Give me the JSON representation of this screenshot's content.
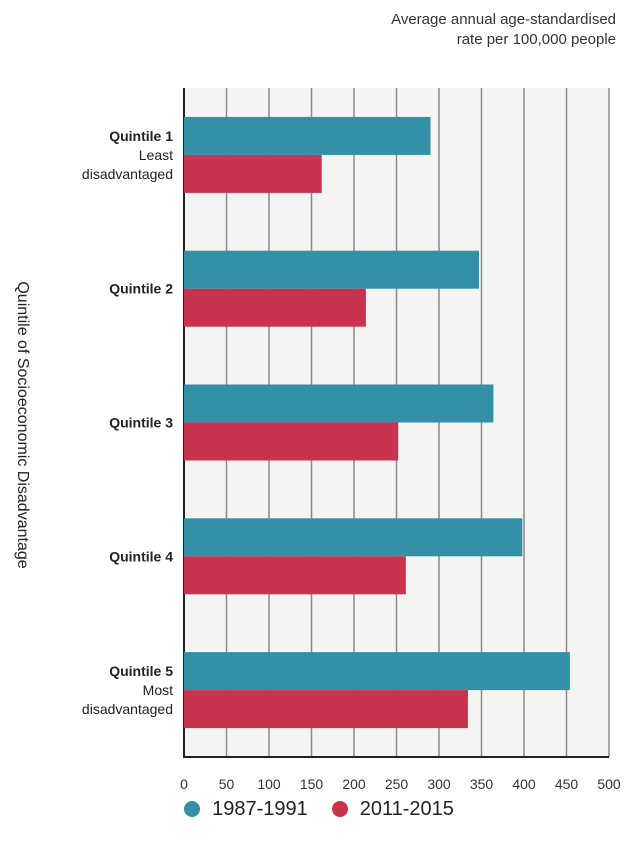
{
  "chart_data": {
    "type": "bar",
    "orientation": "horizontal",
    "title": "Average annual age-standardised\nrate per 100,000 people",
    "subtitle_lines": [
      "Average annual age-standardised",
      "rate per 100,000 people"
    ],
    "ylabel": "Quintile of Socioeconomic Disadvantage",
    "xlabel": "",
    "categories": [
      {
        "label": "Quintile 1",
        "sub1": "Least",
        "sub2": "disadvantaged"
      },
      {
        "label": "Quintile 2",
        "sub1": "",
        "sub2": ""
      },
      {
        "label": "Quintile 3",
        "sub1": "",
        "sub2": ""
      },
      {
        "label": "Quintile 4",
        "sub1": "",
        "sub2": ""
      },
      {
        "label": "Quintile 5",
        "sub1": "Most",
        "sub2": "disadvantaged"
      }
    ],
    "series": [
      {
        "name": "1987-1991",
        "color": "#3490a7",
        "values": [
          290,
          347,
          364,
          398,
          454
        ]
      },
      {
        "name": "2011-2015",
        "color": "#c8344f",
        "values": [
          162,
          214,
          252,
          261,
          334
        ]
      }
    ],
    "xlim": [
      0,
      500
    ],
    "xticks": [
      "0",
      "50",
      "100",
      "150",
      "200",
      "250",
      "300",
      "350",
      "400",
      "450",
      "500"
    ],
    "grid": true,
    "legend_position": "bottom"
  }
}
